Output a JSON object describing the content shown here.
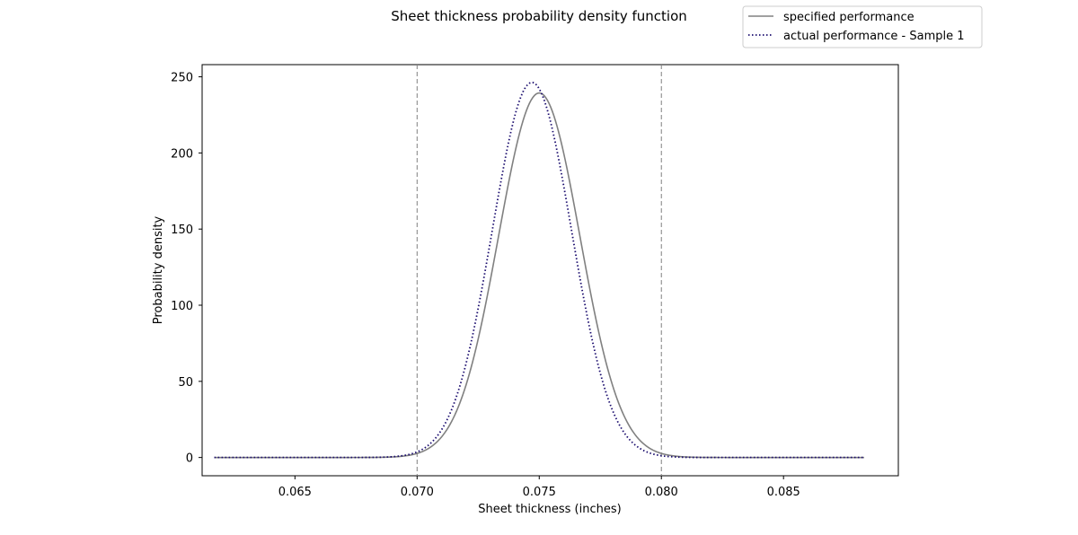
{
  "chart_data": {
    "type": "line",
    "title": "Sheet thickness probability density function",
    "xlabel": "Sheet thickness (inches)",
    "ylabel": "Probability density",
    "xlim": [
      0.0612,
      0.0897
    ],
    "ylim": [
      -12,
      258
    ],
    "x_ticks": [
      0.065,
      0.07,
      0.075,
      0.08,
      0.085
    ],
    "x_tick_labels": [
      "0.065",
      "0.070",
      "0.075",
      "0.080",
      "0.085"
    ],
    "y_ticks": [
      0,
      50,
      100,
      150,
      200,
      250
    ],
    "y_tick_labels": [
      "0",
      "50",
      "100",
      "150",
      "200",
      "250"
    ],
    "x_range": [
      0.0617,
      0.0883
    ],
    "series": [
      {
        "name": "specified performance",
        "mean": 0.075,
        "std": 0.001667,
        "peak": 239.4,
        "color": "#808080",
        "style": "solid"
      },
      {
        "name": "actual performance - Sample 1",
        "mean": 0.0747,
        "std": 0.00162,
        "peak": 246.3,
        "color": "#1a0c6e",
        "style": "dotted"
      }
    ],
    "reference_lines": [
      {
        "x": 0.07,
        "color": "#808080",
        "style": "dashed"
      },
      {
        "x": 0.08,
        "color": "#808080",
        "style": "dashed"
      }
    ],
    "legend_position": "top-right",
    "grid": false
  }
}
